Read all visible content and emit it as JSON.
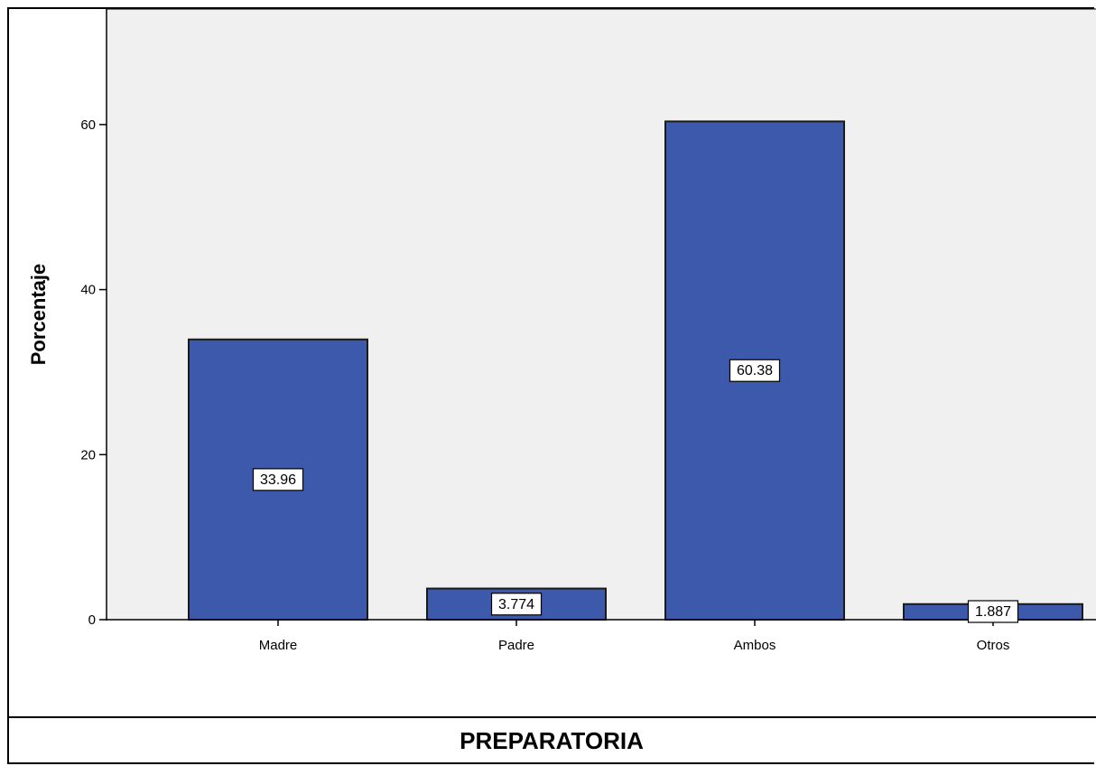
{
  "chart_data": {
    "type": "bar",
    "categories": [
      "Madre",
      "Padre",
      "Ambos",
      "Otros"
    ],
    "values": [
      33.96,
      3.774,
      60.38,
      1.887
    ],
    "data_labels": [
      "33.96",
      "3.774",
      "60.38",
      "1.887"
    ],
    "title": "",
    "xlabel": "",
    "ylabel": "Porcentaje",
    "ylim": [
      0,
      74
    ],
    "yticks": [
      0,
      20,
      40,
      60
    ],
    "grid": false,
    "legend": "none"
  },
  "caption": "PREPARATORIA",
  "colors": {
    "bar_fill": "#3d59ab",
    "bar_stroke": "#1a1a1a",
    "plot_background": "#f0f0f0"
  }
}
